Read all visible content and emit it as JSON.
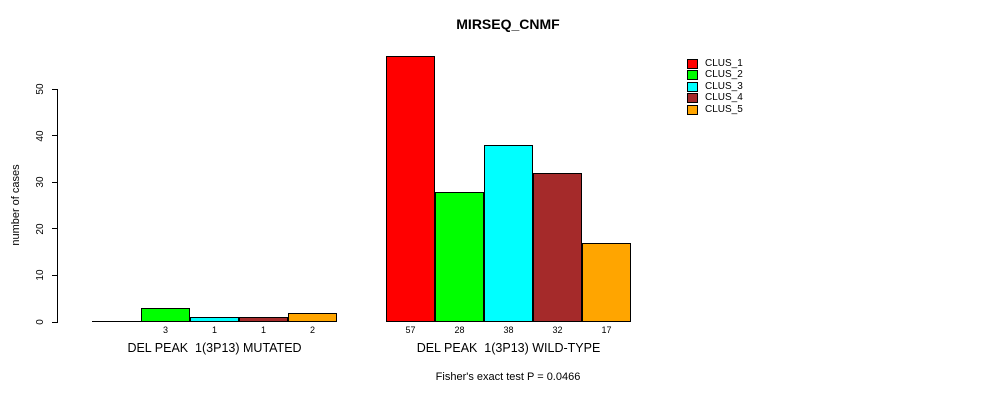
{
  "chart_data": {
    "type": "bar",
    "title": "MIRSEQ_CNMF",
    "ylabel": "number of cases",
    "xlabel": "",
    "ylim": [
      0,
      57
    ],
    "yticks": [
      0,
      10,
      20,
      30,
      40,
      50
    ],
    "grid": false,
    "legend_position": "top-right",
    "categories": [
      "DEL PEAK  1(3P13) MUTATED",
      "DEL PEAK  1(3P13) WILD-TYPE"
    ],
    "series": [
      {
        "name": "CLUS_1",
        "color": "#FF0000",
        "values": [
          0,
          57
        ]
      },
      {
        "name": "CLUS_2",
        "color": "#00FF00",
        "values": [
          3,
          28
        ]
      },
      {
        "name": "CLUS_3",
        "color": "#00FFFF",
        "values": [
          1,
          38
        ]
      },
      {
        "name": "CLUS_4",
        "color": "#A52A2A",
        "values": [
          1,
          32
        ]
      },
      {
        "name": "CLUS_5",
        "color": "#FFA500",
        "values": [
          2,
          17
        ]
      }
    ],
    "bar_value_labels": [
      [
        "",
        "3",
        "1",
        "1",
        "2"
      ],
      [
        "57",
        "28",
        "38",
        "32",
        "17"
      ]
    ],
    "annotation": "Fisher's exact test P = 0.0466"
  }
}
